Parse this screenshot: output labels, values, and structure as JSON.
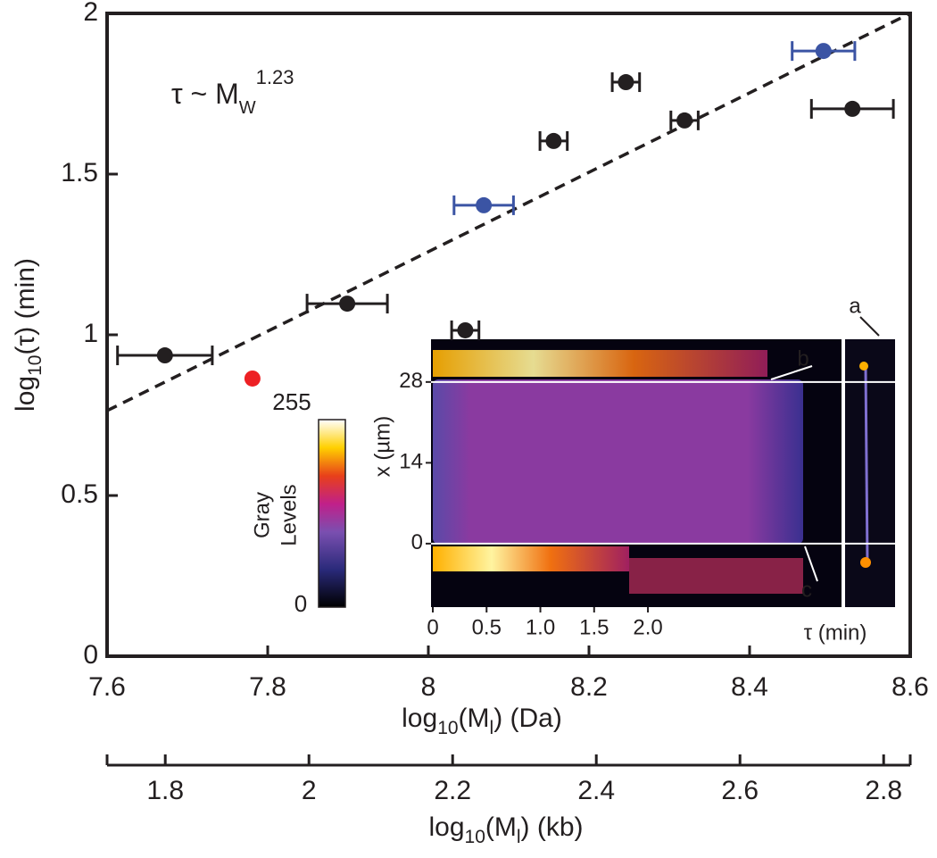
{
  "chart_data": {
    "type": "scatter",
    "xlabel": [
      "log",
      "10",
      "(M",
      "l",
      ") (Da)"
    ],
    "ylabel": [
      "log",
      "10",
      "(τ)   (min)"
    ],
    "xlim": [
      7.6,
      8.6
    ],
    "xticks": [
      7.6,
      7.8,
      8,
      8.2,
      8.4,
      8.6
    ],
    "ylim": [
      0,
      2
    ],
    "yticks": [
      0,
      0.5,
      1,
      1.5,
      2
    ],
    "x2label": [
      "log",
      "10",
      "(M",
      "l",
      ")  (kb)"
    ],
    "x2lim": [
      1.719,
      2.837
    ],
    "x2ticks": [
      1.8,
      2,
      2.2,
      2.4,
      2.6,
      2.8
    ],
    "series": [
      {
        "color": "#231f20",
        "x": [
          7.672,
          7.899,
          8.046,
          8.156,
          8.246,
          8.319,
          8.528
        ],
        "values": [
          0.936,
          1.097,
          1.014,
          1.603,
          1.786,
          1.667,
          1.703
        ],
        "xerr": [
          0.059,
          0.05,
          0.017,
          0.017,
          0.017,
          0.017,
          0.051
        ]
      },
      {
        "color": "#3b54a4",
        "x": [
          8.069,
          8.492
        ],
        "values": [
          1.403,
          1.883
        ],
        "xerr": [
          0.037,
          0.039
        ]
      },
      {
        "color": "#ed2024",
        "x": [
          7.781
        ],
        "values": [
          0.864
        ]
      }
    ],
    "fit": {
      "x": [
        7.6,
        8.6
      ],
      "values": [
        0.764,
        2.0
      ]
    },
    "annotation": [
      "τ ~ M",
      "W",
      "1.23"
    ],
    "inset": {
      "xlim": [
        0,
        3.8
      ],
      "xticks": [
        0,
        0.5,
        {
          "value": 1,
          "label": "1.0"
        },
        1.5,
        {
          "value": 2,
          "label": "2.0"
        }
      ],
      "xlabel": "τ (min)",
      "ylim": [
        -11,
        35.4
      ],
      "yticks": [
        0,
        14,
        28
      ],
      "ylabel": "x (µm)",
      "hlines": [
        28,
        0
      ],
      "markers": [
        "a",
        "b",
        "c"
      ]
    },
    "colorbar": {
      "clim": [
        0,
        255
      ],
      "cticks": [
        0,
        255
      ],
      "label": [
        "Gray",
        "Levels"
      ]
    }
  }
}
